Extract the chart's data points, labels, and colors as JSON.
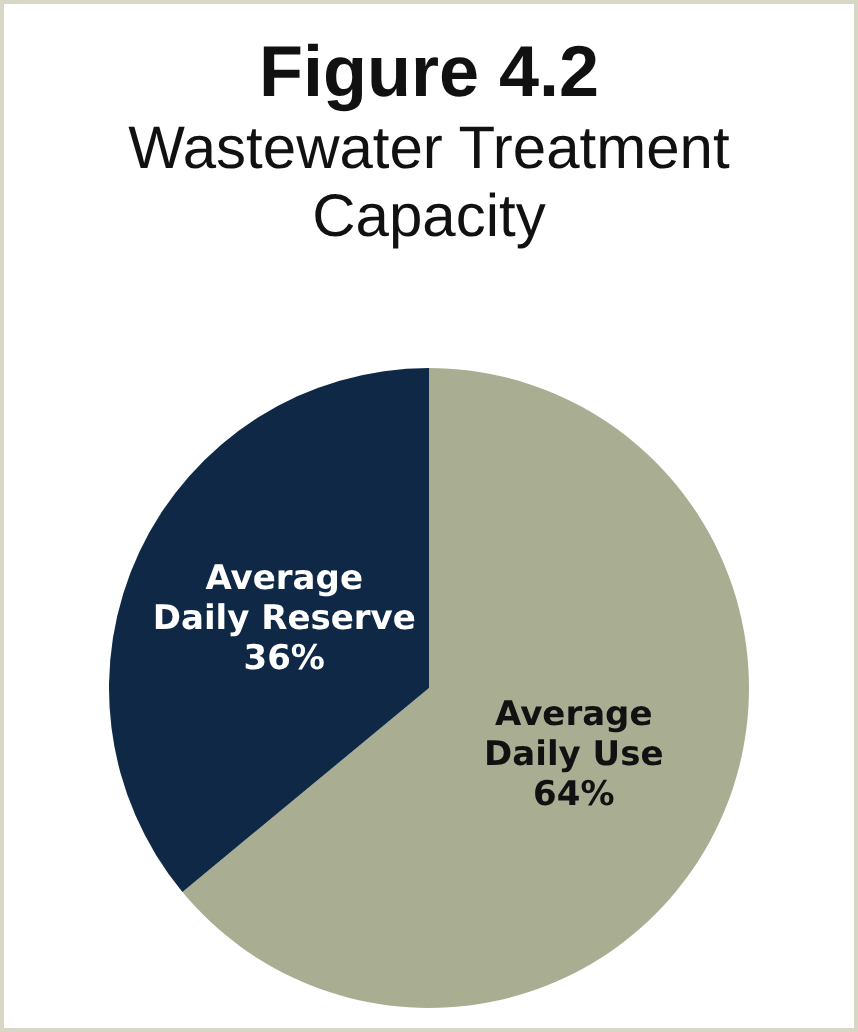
{
  "chart_data": {
    "type": "pie",
    "title": "Figure 4.2",
    "subtitle": "Wastewater Treatment Capacity",
    "categories": [
      "Average Daily Use",
      "Average Daily Reserve"
    ],
    "values": [
      64,
      36
    ],
    "colors": [
      "#a9ae92",
      "#0e2846"
    ],
    "value_labels": [
      "64%",
      "36%"
    ],
    "legend": false
  }
}
